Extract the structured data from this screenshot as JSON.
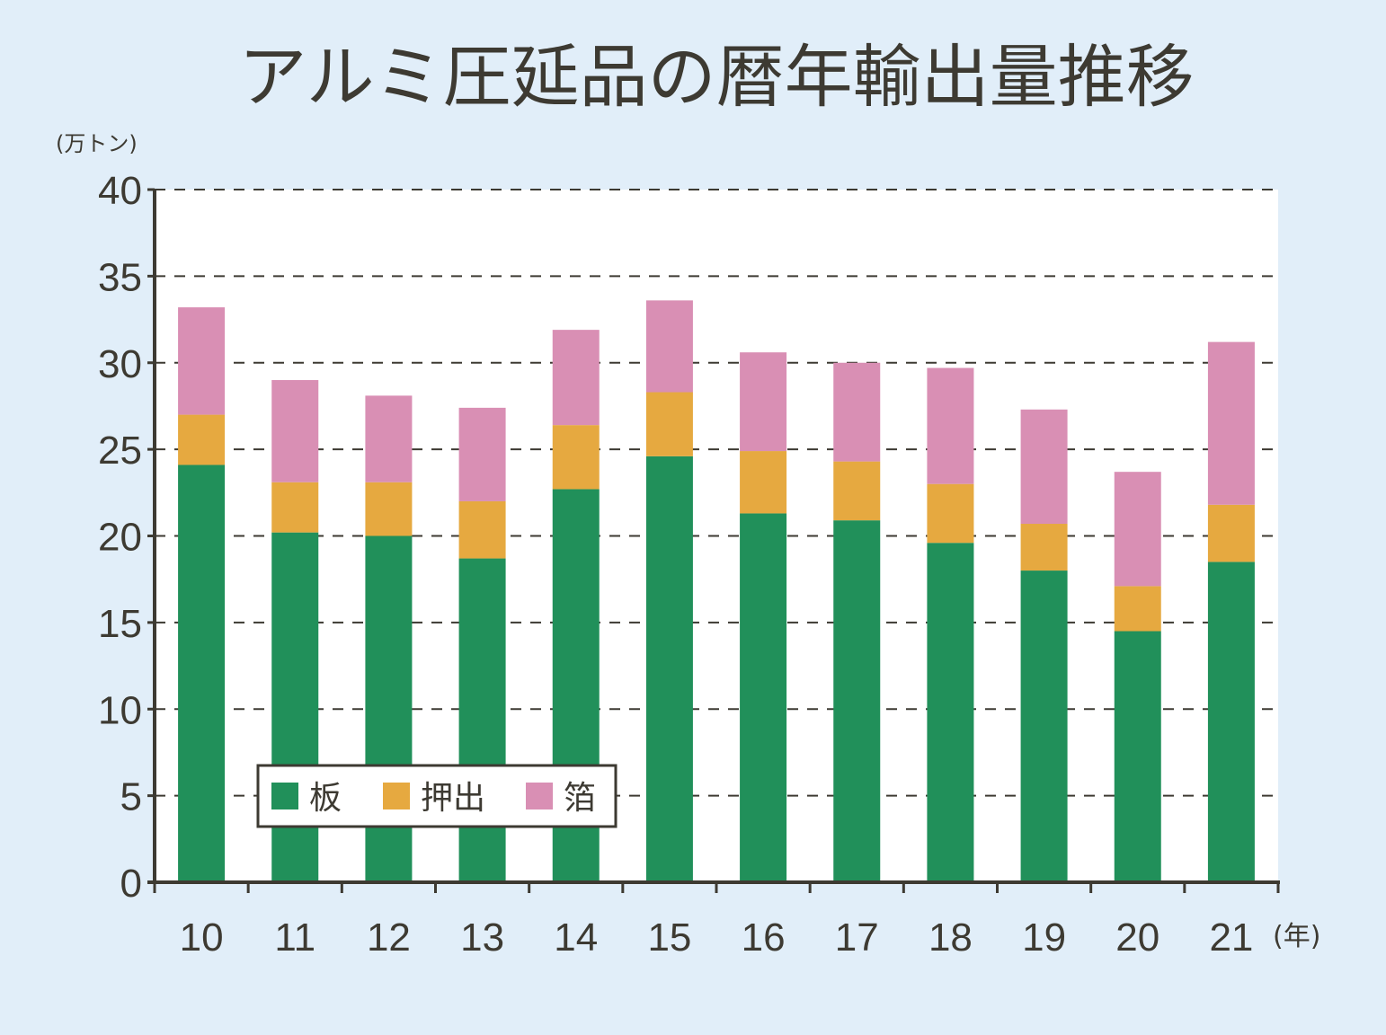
{
  "chart_data": {
    "type": "bar",
    "stacked": true,
    "title": "アルミ圧延品の暦年輸出量推移",
    "ylabel": "(万トン)",
    "xlabel": "(年)",
    "ylim": [
      0,
      40
    ],
    "yticks": [
      0,
      5,
      10,
      15,
      20,
      25,
      30,
      35,
      40
    ],
    "grid": "horizontal dashed",
    "legend_placement": "bottom-left",
    "categories": [
      "10",
      "11",
      "12",
      "13",
      "14",
      "15",
      "16",
      "17",
      "18",
      "19",
      "20",
      "21"
    ],
    "series": [
      {
        "name": "板",
        "color": "#21905a",
        "values": [
          24.1,
          20.2,
          20.0,
          18.7,
          22.7,
          24.6,
          21.3,
          20.9,
          19.6,
          18.0,
          14.5,
          18.5
        ]
      },
      {
        "name": "押出",
        "color": "#e6a940",
        "values": [
          2.9,
          2.9,
          3.1,
          3.3,
          3.7,
          3.7,
          3.6,
          3.4,
          3.4,
          2.7,
          2.6,
          3.3
        ]
      },
      {
        "name": "箔",
        "color": "#d98fb4",
        "values": [
          6.2,
          5.9,
          5.0,
          5.4,
          5.5,
          5.3,
          5.7,
          5.7,
          6.7,
          6.6,
          6.6,
          9.4
        ]
      }
    ]
  }
}
